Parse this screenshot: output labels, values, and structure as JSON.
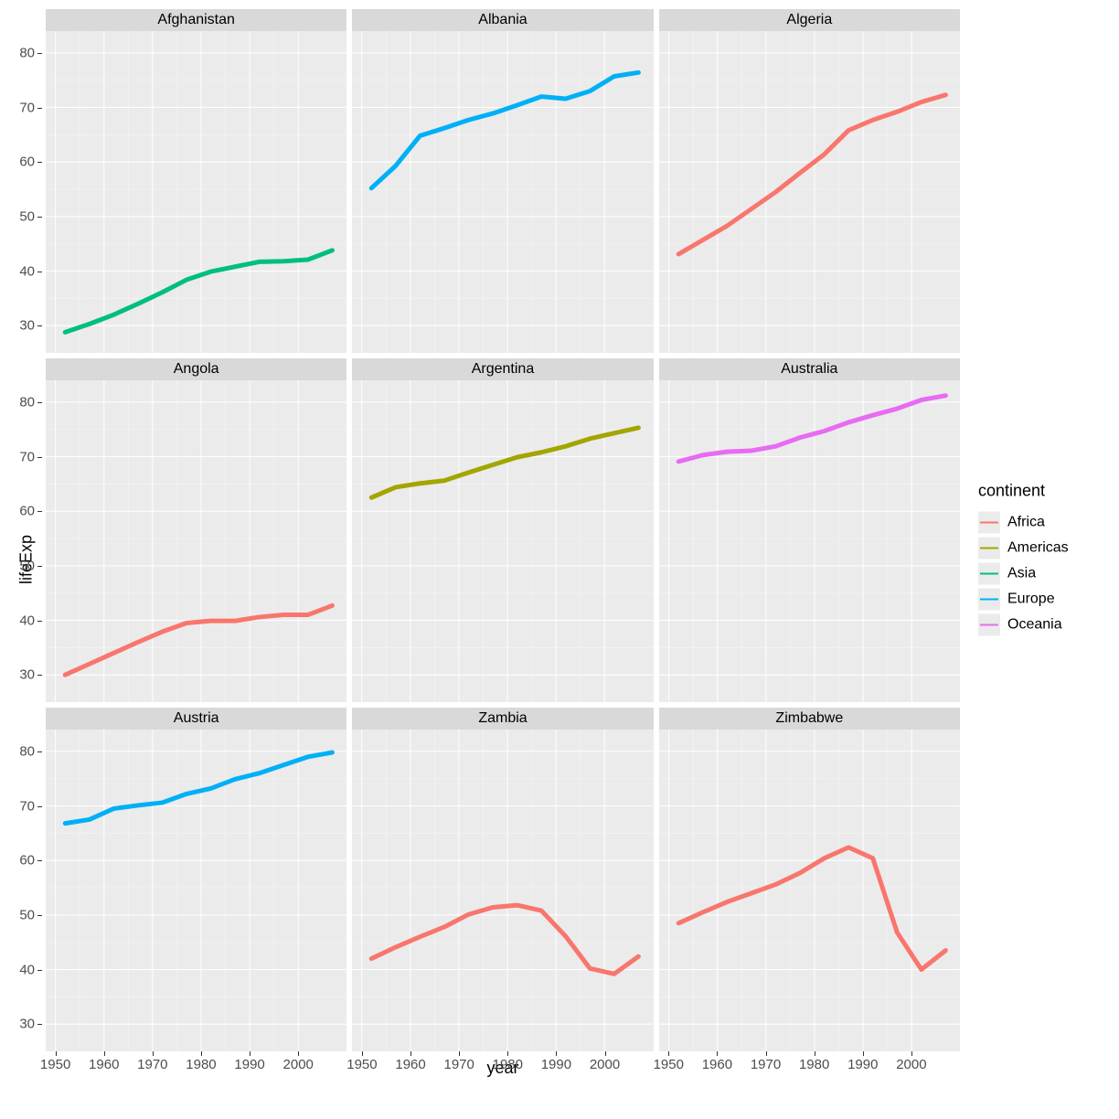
{
  "axis": {
    "xlabel": "year",
    "ylabel": "lifeExp",
    "xlim": [
      1948,
      2010
    ],
    "ylim": [
      25,
      84
    ],
    "xticks": [
      1950,
      1960,
      1970,
      1980,
      1990,
      2000
    ],
    "yticks": [
      30,
      40,
      50,
      60,
      70,
      80
    ],
    "grid_major_color": "#ffffff",
    "grid_minor_color": "#f4f4f4",
    "panel_bg": "#ebebeb",
    "strip_bg": "#d9d9d9",
    "line_width": 1.6,
    "tick_label_fontsize": 15,
    "axis_label_fontsize": 18,
    "strip_fontsize": 16
  },
  "legend": {
    "title": "continent",
    "items": [
      {
        "label": "Africa",
        "color": "#f8766d"
      },
      {
        "label": "Americas",
        "color": "#a3a500"
      },
      {
        "label": "Asia",
        "color": "#00bf7d"
      },
      {
        "label": "Europe",
        "color": "#00b0f6"
      },
      {
        "label": "Oceania",
        "color": "#e76bf3"
      }
    ]
  },
  "years": [
    1952,
    1957,
    1962,
    1967,
    1972,
    1977,
    1982,
    1987,
    1992,
    1997,
    2002,
    2007
  ],
  "facets": [
    {
      "title": "Afghanistan",
      "continent": "Asia",
      "color": "#00bf7d",
      "values": [
        28.8,
        30.3,
        32.0,
        34.0,
        36.1,
        38.4,
        39.9,
        40.8,
        41.7,
        41.8,
        42.1,
        43.8
      ]
    },
    {
      "title": "Albania",
      "continent": "Europe",
      "color": "#00b0f6",
      "values": [
        55.2,
        59.3,
        64.8,
        66.2,
        67.7,
        68.9,
        70.4,
        72.0,
        71.6,
        73.0,
        75.7,
        76.4
      ]
    },
    {
      "title": "Algeria",
      "continent": "Africa",
      "color": "#f8766d",
      "values": [
        43.1,
        45.7,
        48.3,
        51.4,
        54.5,
        58.0,
        61.4,
        65.8,
        67.7,
        69.2,
        71.0,
        72.3
      ]
    },
    {
      "title": "Angola",
      "continent": "Africa",
      "color": "#f8766d",
      "values": [
        30.0,
        32.0,
        34.0,
        36.0,
        37.9,
        39.5,
        39.9,
        39.9,
        40.6,
        41.0,
        41.0,
        42.7
      ]
    },
    {
      "title": "Argentina",
      "continent": "Americas",
      "color": "#a3a500",
      "values": [
        62.5,
        64.4,
        65.1,
        65.6,
        67.1,
        68.5,
        69.9,
        70.8,
        71.9,
        73.3,
        74.3,
        75.3
      ]
    },
    {
      "title": "Australia",
      "continent": "Oceania",
      "color": "#e76bf3",
      "values": [
        69.1,
        70.3,
        70.9,
        71.1,
        71.9,
        73.5,
        74.7,
        76.3,
        77.6,
        78.8,
        80.4,
        81.2
      ]
    },
    {
      "title": "Austria",
      "continent": "Europe",
      "color": "#00b0f6",
      "values": [
        66.8,
        67.5,
        69.5,
        70.1,
        70.6,
        72.2,
        73.2,
        74.9,
        76.0,
        77.5,
        79.0,
        79.8
      ]
    },
    {
      "title": "Zambia",
      "continent": "Africa",
      "color": "#f8766d",
      "values": [
        42.0,
        44.1,
        46.0,
        47.8,
        50.1,
        51.4,
        51.8,
        50.8,
        46.1,
        40.2,
        39.2,
        42.4
      ]
    },
    {
      "title": "Zimbabwe",
      "continent": "Africa",
      "color": "#f8766d",
      "values": [
        48.5,
        50.5,
        52.4,
        54.0,
        55.6,
        57.7,
        60.4,
        62.4,
        60.4,
        46.8,
        40.0,
        43.5
      ]
    }
  ]
}
